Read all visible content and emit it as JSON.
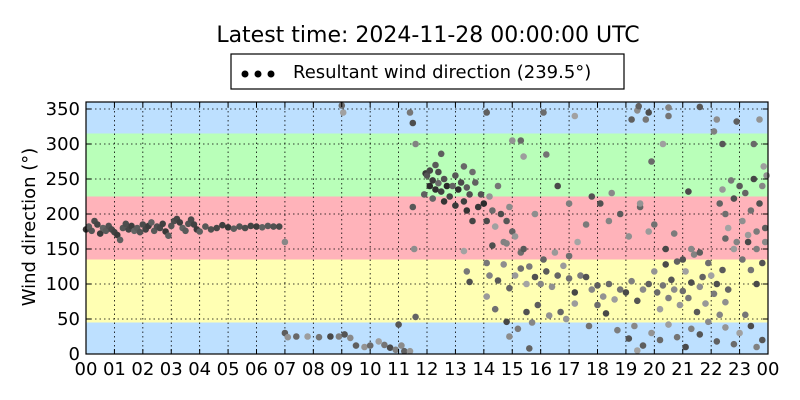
{
  "chart_data": {
    "type": "scatter",
    "title": "Latest time: 2024-11-28 00:00:00 UTC",
    "xlabel": "",
    "ylabel": "Wind direction (°)",
    "xlim": [
      0,
      24
    ],
    "ylim": [
      0,
      360
    ],
    "x_tick_labels": [
      "00",
      "01",
      "02",
      "03",
      "04",
      "05",
      "06",
      "07",
      "08",
      "09",
      "10",
      "11",
      "12",
      "13",
      "14",
      "15",
      "16",
      "17",
      "18",
      "19",
      "20",
      "21",
      "22",
      "23",
      "00"
    ],
    "y_ticks": [
      0,
      50,
      100,
      150,
      200,
      250,
      300,
      350
    ],
    "grid": true,
    "legend": {
      "position": "top-center",
      "entries": [
        "Resultant wind direction (239.5°)"
      ]
    },
    "bands": [
      {
        "from": 0,
        "to": 45,
        "color": "#bde0ff"
      },
      {
        "from": 45,
        "to": 135,
        "color": "#ffffb3"
      },
      {
        "from": 135,
        "to": 225,
        "color": "#ffb3ba"
      },
      {
        "from": 225,
        "to": 315,
        "color": "#b9ffb9"
      },
      {
        "from": 315,
        "to": 360,
        "color": "#bde0ff"
      }
    ],
    "series": [
      {
        "name": "Resultant wind direction (239.5°)",
        "points": [
          [
            0.0,
            178
          ],
          [
            0.1,
            182
          ],
          [
            0.2,
            176
          ],
          [
            0.3,
            190
          ],
          [
            0.4,
            185
          ],
          [
            0.5,
            172
          ],
          [
            0.6,
            180
          ],
          [
            0.7,
            176
          ],
          [
            0.8,
            183
          ],
          [
            0.9,
            178
          ],
          [
            1.0,
            174
          ],
          [
            1.1,
            170
          ],
          [
            1.2,
            163
          ],
          [
            1.3,
            180
          ],
          [
            1.4,
            186
          ],
          [
            1.5,
            178
          ],
          [
            1.6,
            183
          ],
          [
            1.7,
            176
          ],
          [
            1.8,
            180
          ],
          [
            1.9,
            174
          ],
          [
            2.0,
            185
          ],
          [
            2.1,
            178
          ],
          [
            2.2,
            183
          ],
          [
            2.3,
            188
          ],
          [
            2.4,
            176
          ],
          [
            2.5,
            182
          ],
          [
            2.6,
            180
          ],
          [
            2.7,
            186
          ],
          [
            2.8,
            175
          ],
          [
            2.9,
            169
          ],
          [
            3.0,
            183
          ],
          [
            3.1,
            190
          ],
          [
            3.2,
            193
          ],
          [
            3.3,
            188
          ],
          [
            3.4,
            180
          ],
          [
            3.5,
            176
          ],
          [
            3.6,
            186
          ],
          [
            3.7,
            192
          ],
          [
            3.8,
            185
          ],
          [
            3.9,
            178
          ],
          [
            4.0,
            175
          ],
          [
            4.2,
            182
          ],
          [
            4.4,
            178
          ],
          [
            4.6,
            180
          ],
          [
            4.8,
            184
          ],
          [
            5.0,
            181
          ],
          [
            5.2,
            179
          ],
          [
            5.4,
            182
          ],
          [
            5.6,
            180
          ],
          [
            5.8,
            183
          ],
          [
            6.0,
            182
          ],
          [
            6.2,
            181
          ],
          [
            6.4,
            183
          ],
          [
            6.6,
            182
          ],
          [
            6.8,
            182
          ],
          [
            7.0,
            160
          ],
          [
            7.0,
            30
          ],
          [
            7.1,
            24
          ],
          [
            7.4,
            25
          ],
          [
            7.8,
            25
          ],
          [
            8.2,
            24
          ],
          [
            8.6,
            25
          ],
          [
            8.9,
            25
          ],
          [
            9.1,
            28
          ],
          [
            9.3,
            23
          ],
          [
            9.5,
            12
          ],
          [
            9.8,
            10
          ],
          [
            10.0,
            12
          ],
          [
            10.3,
            18
          ],
          [
            10.5,
            13
          ],
          [
            10.7,
            9
          ],
          [
            10.9,
            6
          ],
          [
            11.0,
            42
          ],
          [
            11.1,
            12
          ],
          [
            11.2,
            4
          ],
          [
            11.4,
            4
          ],
          [
            9.0,
            355
          ],
          [
            9.05,
            345
          ],
          [
            11.4,
            345
          ],
          [
            11.5,
            330
          ],
          [
            11.6,
            300
          ],
          [
            11.5,
            210
          ],
          [
            11.55,
            150
          ],
          [
            11.6,
            53
          ],
          [
            11.9,
            228
          ],
          [
            11.95,
            258
          ],
          [
            12.0,
            255
          ],
          [
            12.1,
            240
          ],
          [
            12.1,
            262
          ],
          [
            12.2,
            222
          ],
          [
            12.2,
            248
          ],
          [
            12.3,
            270
          ],
          [
            12.3,
            235
          ],
          [
            12.4,
            260
          ],
          [
            12.4,
            244
          ],
          [
            12.5,
            232
          ],
          [
            12.5,
            286
          ],
          [
            12.6,
            218
          ],
          [
            12.6,
            250
          ],
          [
            12.7,
            240
          ],
          [
            12.8,
            225
          ],
          [
            12.9,
            240
          ],
          [
            13.0,
            212
          ],
          [
            13.0,
            255
          ],
          [
            13.1,
            235
          ],
          [
            13.2,
            245
          ],
          [
            13.3,
            268
          ],
          [
            13.3,
            218
          ],
          [
            13.4,
            238
          ],
          [
            13.4,
            205
          ],
          [
            13.5,
            228
          ],
          [
            13.6,
            260
          ],
          [
            13.6,
            190
          ],
          [
            13.7,
            245
          ],
          [
            13.8,
            210
          ],
          [
            13.9,
            228
          ],
          [
            14.0,
            215
          ],
          [
            14.1,
            190
          ],
          [
            14.2,
            225
          ],
          [
            14.3,
            205
          ],
          [
            14.4,
            182
          ],
          [
            14.5,
            240
          ],
          [
            14.6,
            200
          ],
          [
            14.7,
            160
          ],
          [
            14.8,
            190
          ],
          [
            14.9,
            210
          ],
          [
            15.0,
            175
          ],
          [
            15.1,
            168
          ],
          [
            15.3,
            145
          ],
          [
            13.3,
            147
          ],
          [
            13.4,
            118
          ],
          [
            13.5,
            103
          ],
          [
            14.2,
            112
          ],
          [
            14.5,
            105
          ],
          [
            14.7,
            128
          ],
          [
            14.9,
            94
          ],
          [
            15.1,
            112
          ],
          [
            15.3,
            122
          ],
          [
            15.5,
            100
          ],
          [
            15.6,
            125
          ],
          [
            15.8,
            110
          ],
          [
            16.0,
            100
          ],
          [
            16.2,
            118
          ],
          [
            16.4,
            96
          ],
          [
            16.6,
            112
          ],
          [
            16.8,
            126
          ],
          [
            17.0,
            108
          ],
          [
            17.2,
            88
          ],
          [
            17.4,
            112
          ],
          [
            17.6,
            110
          ],
          [
            17.8,
            92
          ],
          [
            18.0,
            98
          ],
          [
            18.2,
            82
          ],
          [
            18.4,
            100
          ],
          [
            18.6,
            78
          ],
          [
            18.8,
            92
          ],
          [
            19.0,
            88
          ],
          [
            19.2,
            104
          ],
          [
            19.4,
            76
          ],
          [
            19.6,
            92
          ],
          [
            19.8,
            100
          ],
          [
            20.0,
            118
          ],
          [
            20.1,
            88
          ],
          [
            20.2,
            64
          ],
          [
            20.3,
            98
          ],
          [
            20.4,
            128
          ],
          [
            20.5,
            80
          ],
          [
            20.6,
            106
          ],
          [
            20.7,
            92
          ],
          [
            20.8,
            132
          ],
          [
            20.9,
            70
          ],
          [
            21.0,
            90
          ],
          [
            21.1,
            118
          ],
          [
            21.2,
            80
          ],
          [
            21.3,
            102
          ],
          [
            21.4,
            142
          ],
          [
            21.5,
            60
          ],
          [
            21.6,
            96
          ],
          [
            21.7,
            110
          ],
          [
            21.8,
            72
          ],
          [
            21.9,
            130
          ],
          [
            22.0,
            112
          ],
          [
            22.1,
            86
          ],
          [
            22.2,
            100
          ],
          [
            22.3,
            56
          ],
          [
            22.4,
            120
          ],
          [
            22.5,
            74
          ],
          [
            22.6,
            92
          ],
          [
            14.1,
            82
          ],
          [
            14.4,
            64
          ],
          [
            14.8,
            46
          ],
          [
            15.2,
            36
          ],
          [
            15.5,
            60
          ],
          [
            15.7,
            45
          ],
          [
            15.9,
            70
          ],
          [
            16.3,
            55
          ],
          [
            16.7,
            60
          ],
          [
            17.2,
            72
          ],
          [
            17.7,
            40
          ],
          [
            18.3,
            58
          ],
          [
            18.7,
            34
          ],
          [
            19.1,
            22
          ],
          [
            19.3,
            40
          ],
          [
            19.6,
            12
          ],
          [
            19.9,
            30
          ],
          [
            20.2,
            20
          ],
          [
            20.5,
            42
          ],
          [
            20.8,
            24
          ],
          [
            21.1,
            10
          ],
          [
            21.3,
            36
          ],
          [
            21.6,
            28
          ],
          [
            21.9,
            46
          ],
          [
            22.2,
            18
          ],
          [
            22.5,
            38
          ],
          [
            22.8,
            14
          ],
          [
            23.0,
            30
          ],
          [
            23.2,
            56
          ],
          [
            23.4,
            40
          ],
          [
            23.6,
            10
          ],
          [
            23.8,
            20
          ],
          [
            14.9,
            25
          ],
          [
            15.6,
            8
          ],
          [
            16.9,
            50
          ],
          [
            18.0,
            70
          ],
          [
            19.4,
            5
          ],
          [
            14.1,
            130
          ],
          [
            14.3,
            155
          ],
          [
            14.8,
            158
          ],
          [
            15.4,
            150
          ],
          [
            15.8,
            200
          ],
          [
            16.1,
            135
          ],
          [
            16.5,
            145
          ],
          [
            17.0,
            140
          ],
          [
            17.3,
            160
          ],
          [
            17.6,
            185
          ],
          [
            18.1,
            215
          ],
          [
            18.4,
            190
          ],
          [
            18.8,
            200
          ],
          [
            19.1,
            168
          ],
          [
            19.5,
            210
          ],
          [
            19.8,
            175
          ],
          [
            20.0,
            185
          ],
          [
            20.4,
            150
          ],
          [
            20.7,
            172
          ],
          [
            21.0,
            135
          ],
          [
            21.3,
            150
          ],
          [
            21.6,
            145
          ],
          [
            15.0,
            305
          ],
          [
            15.3,
            305
          ],
          [
            15.4,
            282
          ],
          [
            16.2,
            285
          ],
          [
            16.6,
            240
          ],
          [
            17.0,
            215
          ],
          [
            17.8,
            225
          ],
          [
            18.5,
            230
          ],
          [
            19.2,
            335
          ],
          [
            19.5,
            215
          ],
          [
            19.9,
            275
          ],
          [
            20.3,
            300
          ],
          [
            20.5,
            340
          ],
          [
            21.2,
            232
          ],
          [
            22.1,
            318
          ],
          [
            22.4,
            300
          ],
          [
            19.4,
            348
          ],
          [
            19.45,
            354
          ],
          [
            14.1,
            345
          ],
          [
            16.1,
            345
          ],
          [
            17.2,
            340
          ],
          [
            19.7,
            335
          ],
          [
            19.8,
            345
          ],
          [
            20.5,
            352
          ],
          [
            21.6,
            353
          ],
          [
            22.2,
            335
          ],
          [
            22.3,
            215
          ],
          [
            22.4,
            235
          ],
          [
            22.5,
            200
          ],
          [
            22.6,
            180
          ],
          [
            22.7,
            248
          ],
          [
            22.8,
            222
          ],
          [
            22.9,
            160
          ],
          [
            23.0,
            240
          ],
          [
            23.1,
            190
          ],
          [
            23.2,
            230
          ],
          [
            23.3,
            170
          ],
          [
            23.4,
            205
          ],
          [
            23.5,
            250
          ],
          [
            23.6,
            175
          ],
          [
            23.7,
            215
          ],
          [
            23.8,
            240
          ],
          [
            23.9,
            180
          ],
          [
            23.95,
            255
          ],
          [
            22.5,
            165
          ],
          [
            22.8,
            150
          ],
          [
            23.1,
            135
          ],
          [
            23.3,
            160
          ],
          [
            23.6,
            150
          ],
          [
            23.8,
            130
          ],
          [
            23.9,
            160
          ],
          [
            22.9,
            332
          ],
          [
            23.7,
            335
          ],
          [
            23.5,
            300
          ],
          [
            23.85,
            268
          ],
          [
            23.4,
            120
          ],
          [
            23.6,
            100
          ]
        ]
      }
    ]
  }
}
